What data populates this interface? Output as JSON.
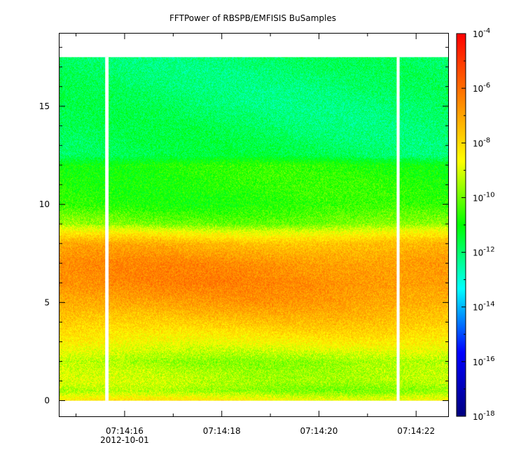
{
  "chart_data": {
    "type": "heatmap",
    "title": "FFTPower of RBSPB/EMFISIS  BuSamples",
    "xlabel": "",
    "ylabel": "",
    "x_tick_labels": [
      "07:14:16",
      "07:14:18",
      "07:14:20",
      "07:14:22"
    ],
    "x_tick_sublabel": "2012-10-01",
    "x_major_ticks": [
      16,
      18,
      20,
      22
    ],
    "x_minor_ticks": [
      15,
      17,
      19,
      21
    ],
    "xlim_seconds": [
      14.66,
      22.66
    ],
    "y_ticks": [
      0,
      5,
      10,
      15
    ],
    "y_tick_labels": [
      "0",
      "5",
      "10",
      "15"
    ],
    "ylim": [
      -0.8,
      18.7
    ],
    "y_data_range": [
      0,
      17.5
    ],
    "data_gaps_seconds": [
      [
        15.6,
        15.67
      ],
      [
        21.6,
        21.66
      ]
    ],
    "colorbar": {
      "scale": "log",
      "range": [
        1e-18,
        0.0001
      ],
      "tick_exponents": [
        -4,
        -6,
        -8,
        -10,
        -12,
        -14,
        -16,
        -18
      ],
      "colors": [
        "#00007f",
        "#0000ff",
        "#00ffff",
        "#00ff00",
        "#ffff00",
        "#ff7f00",
        "#ff0000"
      ]
    },
    "log10_power_profile": [
      {
        "y": 0.0,
        "log10": -8.3
      },
      {
        "y": 0.5,
        "log10": -9.6
      },
      {
        "y": 1.0,
        "log10": -9.2
      },
      {
        "y": 1.5,
        "log10": -9.3
      },
      {
        "y": 2.0,
        "log10": -9.5
      },
      {
        "y": 3.0,
        "log10": -8.4
      },
      {
        "y": 4.0,
        "log10": -7.6
      },
      {
        "y": 5.0,
        "log10": -6.9
      },
      {
        "y": 6.0,
        "log10": -6.5
      },
      {
        "y": 7.0,
        "log10": -6.6
      },
      {
        "y": 8.0,
        "log10": -7.3
      },
      {
        "y": 8.6,
        "log10": -8.6
      },
      {
        "y": 9.0,
        "log10": -9.8
      },
      {
        "y": 10.0,
        "log10": -10.6
      },
      {
        "y": 11.0,
        "log10": -10.6
      },
      {
        "y": 12.0,
        "log10": -10.7
      },
      {
        "y": 12.5,
        "log10": -11.7
      },
      {
        "y": 15.0,
        "log10": -11.9
      },
      {
        "y": 17.5,
        "log10": -11.9
      }
    ]
  }
}
